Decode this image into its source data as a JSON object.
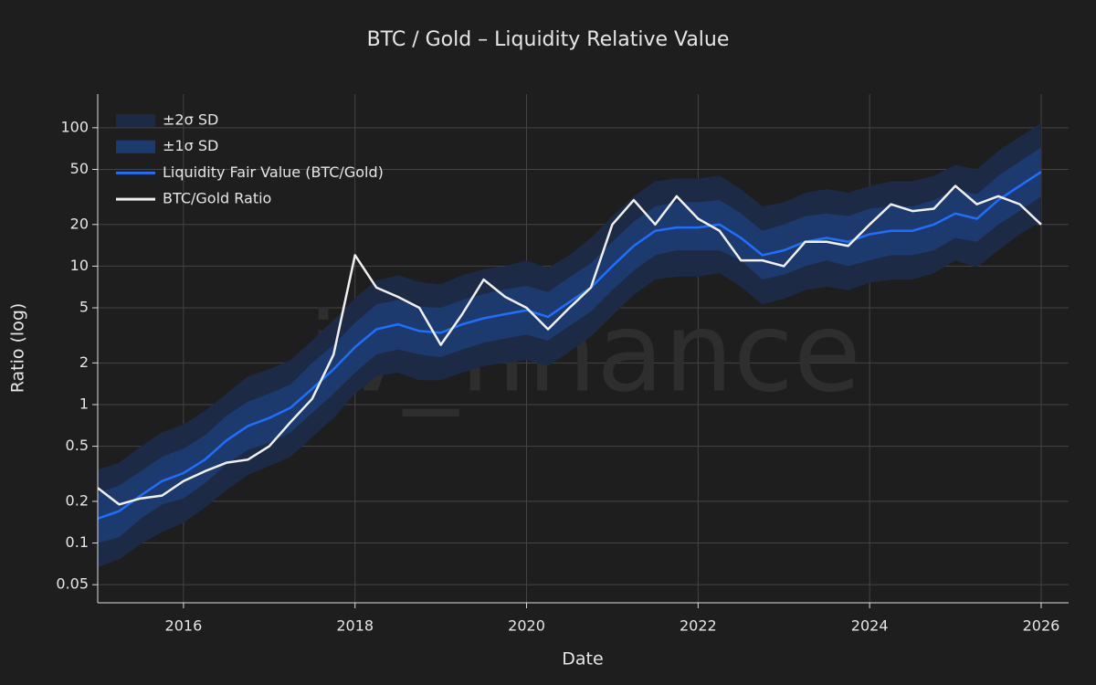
{
  "chart_data": {
    "type": "line",
    "title": "BTC / Gold – Liquidity Relative Value",
    "x_label": "Date",
    "y_label": "Ratio (log)",
    "watermark": "jv_finance",
    "log_y": true,
    "grid": true,
    "legend": "top-left",
    "xlim": [
      2015.0,
      2026.32
    ],
    "xticks": [
      2016,
      2018,
      2020,
      2022,
      2024,
      2026
    ],
    "ylim": [
      0.037,
      175
    ],
    "yticks": [
      0.05,
      0.1,
      0.2,
      0.5,
      1,
      2,
      5,
      10,
      20,
      50,
      100
    ],
    "x": [
      2015.0,
      2015.25,
      2015.5,
      2015.75,
      2016.0,
      2016.25,
      2016.5,
      2016.75,
      2017.0,
      2017.25,
      2017.5,
      2017.75,
      2018.0,
      2018.25,
      2018.5,
      2018.75,
      2019.0,
      2019.25,
      2019.5,
      2019.75,
      2020.0,
      2020.25,
      2020.5,
      2020.75,
      2021.0,
      2021.25,
      2021.5,
      2021.75,
      2022.0,
      2022.25,
      2022.5,
      2022.75,
      2023.0,
      2023.25,
      2023.5,
      2023.75,
      2024.0,
      2024.25,
      2024.5,
      2024.75,
      2025.0,
      2025.25,
      2025.5,
      2025.75,
      2026.0
    ],
    "series": [
      {
        "name": "±2σ SD",
        "kind": "band",
        "color": "#1c2a45",
        "lower": [
          0.067,
          0.076,
          0.098,
          0.12,
          0.14,
          0.18,
          0.24,
          0.31,
          0.36,
          0.42,
          0.58,
          0.8,
          1.2,
          1.6,
          1.7,
          1.5,
          1.5,
          1.7,
          1.9,
          2,
          2.1,
          1.9,
          2.4,
          3.1,
          4.4,
          6.2,
          8,
          8.4,
          8.4,
          8.9,
          7.1,
          5.3,
          5.8,
          6.7,
          7.1,
          6.7,
          7.6,
          8,
          8,
          8.9,
          11,
          9.8,
          13,
          17,
          21
        ],
        "upper": [
          0.34,
          0.38,
          0.5,
          0.63,
          0.72,
          0.9,
          1.2,
          1.6,
          1.8,
          2.1,
          2.9,
          4.1,
          5.9,
          7.9,
          8.6,
          7.7,
          7.4,
          8.6,
          9.5,
          10,
          11,
          9.7,
          12,
          16,
          23,
          32,
          41,
          43,
          43,
          45,
          36,
          27,
          29,
          34,
          36,
          34,
          38,
          41,
          41,
          45,
          54,
          50,
          68,
          86,
          108
        ]
      },
      {
        "name": "±1σ SD",
        "kind": "band",
        "color": "#1d3a6e",
        "lower": [
          0.1,
          0.11,
          0.15,
          0.19,
          0.21,
          0.27,
          0.37,
          0.47,
          0.53,
          0.63,
          0.87,
          1.2,
          1.7,
          2.3,
          2.5,
          2.3,
          2.2,
          2.5,
          2.8,
          3,
          3.2,
          2.9,
          3.7,
          4.7,
          6.7,
          9.3,
          12,
          13,
          13,
          13,
          11,
          8,
          8.7,
          10,
          11,
          10,
          11,
          12,
          12,
          13,
          16,
          15,
          20,
          25,
          32
        ],
        "upper": [
          0.23,
          0.26,
          0.33,
          0.42,
          0.48,
          0.6,
          0.83,
          1.05,
          1.2,
          1.4,
          2,
          2.7,
          3.9,
          5.3,
          5.7,
          5.1,
          5,
          5.7,
          6.3,
          6.8,
          7.2,
          6.5,
          8.3,
          10.5,
          15,
          21,
          27,
          29,
          29,
          30,
          24,
          18,
          20,
          23,
          24,
          23,
          26,
          27,
          27,
          30,
          36,
          33,
          45,
          57,
          72
        ]
      },
      {
        "name": "Liquidity Fair Value (BTC/Gold)",
        "kind": "line",
        "color": "#1f6fff",
        "values": [
          0.15,
          0.17,
          0.22,
          0.28,
          0.32,
          0.4,
          0.55,
          0.7,
          0.8,
          0.95,
          1.3,
          1.8,
          2.6,
          3.5,
          3.8,
          3.4,
          3.3,
          3.8,
          4.2,
          4.5,
          4.8,
          4.3,
          5.5,
          7,
          10,
          14,
          18,
          19,
          19,
          20,
          16,
          12,
          13,
          15,
          16,
          15,
          17,
          18,
          18,
          20,
          24,
          22,
          30,
          38,
          48
        ]
      },
      {
        "name": "BTC/Gold Ratio",
        "kind": "line",
        "color": "#f0f0f0",
        "values": [
          0.25,
          0.19,
          0.21,
          0.22,
          0.28,
          0.33,
          0.38,
          0.4,
          0.5,
          0.75,
          1.1,
          2.3,
          12,
          7,
          6,
          5,
          2.7,
          4.5,
          8,
          6,
          5,
          3.5,
          5,
          7,
          20,
          30,
          20,
          32,
          22,
          18,
          11,
          11,
          10,
          15,
          15,
          14,
          20,
          28,
          25,
          26,
          38,
          28,
          32,
          28,
          20
        ]
      }
    ]
  }
}
